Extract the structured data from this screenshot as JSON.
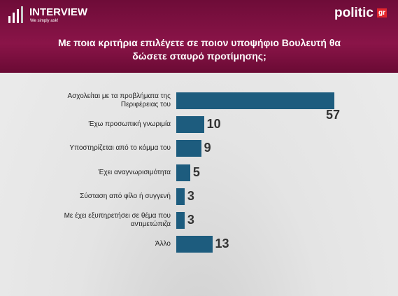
{
  "header": {
    "brand": "INTERVIEW",
    "tagline": "We simply ask!",
    "partner": "politic",
    "partner_suffix": "gr"
  },
  "chart_data": {
    "type": "bar",
    "orientation": "horizontal",
    "title": "Με ποια κριτήρια επιλέγετε σε ποιον υποψήφιο Βουλευτή θα δώσετε σταυρό προτίμησης;",
    "categories": [
      "Ασχολείται με τα προβλήματα της Περιφέρειας του",
      "Έχω προσωπική γνωριμία",
      "Υποστηρίζεται από το κόμμα του",
      "Έχει αναγνωρισιμότητα",
      "Σύσταση από φίλο ή συγγενή",
      "Με έχει εξυπηρετήσει σε θέμα που αντιμετώπιζα",
      "Άλλο"
    ],
    "values": [
      57,
      10,
      9,
      5,
      3,
      3,
      13
    ],
    "color": "#1d5c7e"
  }
}
